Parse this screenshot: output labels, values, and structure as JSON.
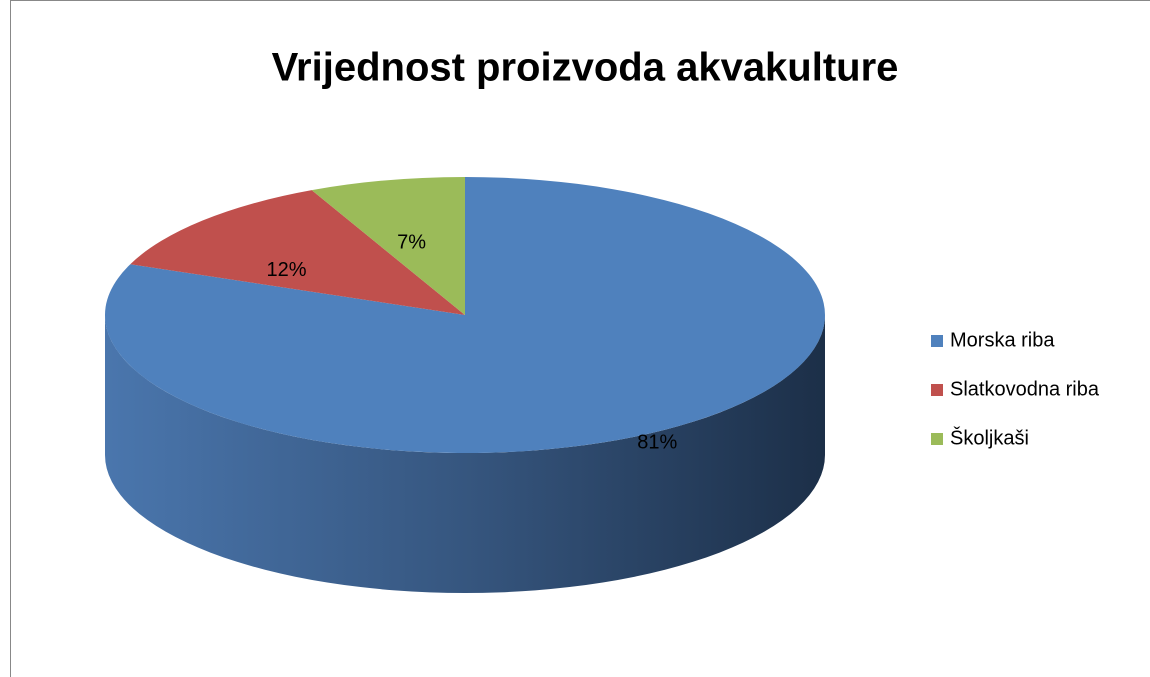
{
  "chart_data": {
    "type": "pie",
    "title": "Vrijednost proizvoda akvakulture",
    "categories": [
      "Morska riba",
      "Slatkovodna riba",
      "Školjkaši"
    ],
    "values": [
      81,
      12,
      7
    ],
    "value_labels": [
      "81%",
      "12%",
      "7%"
    ],
    "colors": [
      "#4f81bd",
      "#c0504d",
      "#9bbb59"
    ],
    "legend": "right"
  }
}
